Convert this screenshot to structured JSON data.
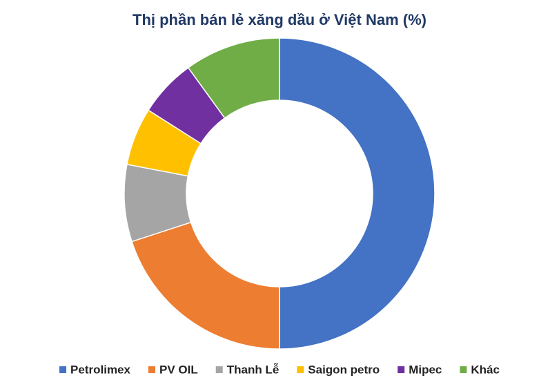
{
  "chart_data": {
    "type": "donut",
    "title": "Thị phần bán lẻ xăng dầu ở Việt Nam (%)",
    "categories": [
      "Petrolimex",
      "PV OIL",
      "Thanh Lễ",
      "Saigon petro",
      "Mipec",
      "Khác"
    ],
    "values": [
      50,
      20,
      8,
      6,
      6,
      10
    ],
    "colors": [
      "#4472c4",
      "#ed7d31",
      "#a5a5a5",
      "#ffc000",
      "#7030a0",
      "#70ad47"
    ],
    "legend": "bottom"
  }
}
